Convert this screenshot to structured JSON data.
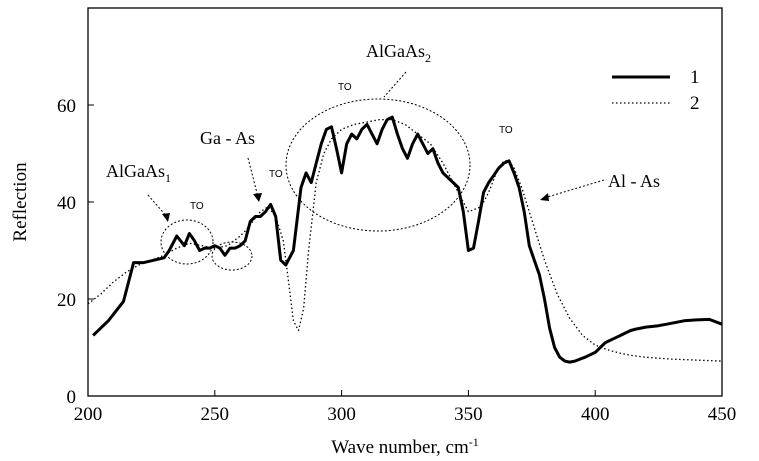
{
  "chart_data": {
    "type": "line",
    "title": "",
    "xlabel": "Wave number, cm",
    "xlabel_superscript": "-1",
    "ylabel": "Reflection",
    "xlim": [
      200,
      450
    ],
    "ylim": [
      0,
      80
    ],
    "xticks": [
      200,
      250,
      300,
      350,
      400,
      450
    ],
    "yticks": [
      0,
      20,
      40,
      60
    ],
    "grid": false,
    "legend_position": "top-right",
    "legend_entries": [
      "1",
      "2"
    ],
    "series": [
      {
        "name": "1",
        "style": "solid-thick",
        "x": [
          202,
          208,
          214,
          218,
          222,
          226,
          230,
          232,
          235,
          238,
          240,
          242,
          244,
          246,
          248,
          250,
          252,
          254,
          256,
          258,
          260,
          262,
          264,
          266,
          268,
          270,
          272,
          274,
          276,
          278,
          281,
          284,
          286,
          288,
          290,
          292,
          294,
          296,
          298,
          300,
          302,
          304,
          306,
          308,
          310,
          312,
          314,
          316,
          318,
          320,
          322,
          324,
          326,
          328,
          330,
          332,
          334,
          336,
          338,
          340,
          342,
          344,
          346,
          348,
          350,
          352,
          354,
          356,
          358,
          360,
          362,
          364,
          366,
          368,
          370,
          372,
          374,
          376,
          378,
          380,
          382,
          384,
          386,
          388,
          390,
          392,
          394,
          396,
          398,
          400,
          402,
          404,
          406,
          408,
          410,
          412,
          414,
          416,
          418,
          420,
          425,
          430,
          435,
          440,
          445,
          450
        ],
        "y": [
          12.5,
          15.5,
          19.5,
          27.5,
          27.5,
          28,
          28.5,
          30,
          33,
          31,
          33.5,
          32,
          30,
          30.5,
          30.5,
          31,
          30.5,
          29,
          30.5,
          30.5,
          31,
          32,
          36,
          37,
          37,
          38,
          39.5,
          37,
          28,
          27,
          30,
          43,
          46,
          44,
          48,
          52,
          55,
          55.5,
          51,
          46,
          52,
          54,
          53,
          55,
          56,
          54,
          52,
          55,
          57,
          57.5,
          54,
          51,
          49,
          52,
          54,
          52,
          50,
          51,
          48,
          46,
          45,
          44,
          43,
          38,
          30,
          30.5,
          36,
          42,
          44,
          45.5,
          47,
          48,
          48.5,
          46,
          43,
          38,
          31,
          28,
          25,
          20,
          14,
          10,
          8,
          7.2,
          7,
          7.2,
          7.6,
          8,
          8.5,
          9,
          10,
          11,
          11.5,
          12,
          12.5,
          13,
          13.5,
          13.8,
          14,
          14.2,
          14.5,
          15,
          15.5,
          15.7,
          15.8,
          14.8
        ]
      },
      {
        "name": "2",
        "style": "dotted",
        "x": [
          200,
          205,
          210,
          215,
          220,
          225,
          230,
          235,
          240,
          245,
          250,
          255,
          260,
          262,
          265,
          268,
          271,
          274,
          277,
          279,
          281,
          283,
          285,
          287,
          290,
          293,
          296,
          300,
          305,
          310,
          315,
          320,
          325,
          330,
          335,
          340,
          345,
          350,
          355,
          358,
          361,
          364,
          366,
          368,
          371,
          374,
          377,
          380,
          385,
          390,
          395,
          400,
          405,
          410,
          415,
          420,
          425,
          430,
          435,
          440,
          445,
          450
        ],
        "y": [
          19,
          21,
          23.5,
          25.5,
          27,
          28,
          29,
          30.5,
          31.5,
          31,
          30.5,
          31,
          33,
          34,
          36,
          38,
          39,
          37,
          32,
          24,
          15.5,
          13.5,
          18,
          30,
          44,
          50,
          53,
          55,
          56,
          56.5,
          57,
          57,
          56,
          54,
          52,
          48,
          43,
          38,
          39,
          42,
          46,
          48.5,
          48.5,
          47,
          43,
          38,
          33,
          28,
          21,
          16,
          12.5,
          10.5,
          9.5,
          8.8,
          8.3,
          8,
          7.8,
          7.6,
          7.5,
          7.4,
          7.3,
          7.2
        ]
      }
    ],
    "annotations": {
      "algaas_low": "AlGaAs",
      "algaas_low_sub": "1",
      "algaas_high": "AlGaAs",
      "algaas_high_sub": "2",
      "ga_as": "Ga - As",
      "al_as": "Al - As",
      "to_label": "TO"
    }
  }
}
